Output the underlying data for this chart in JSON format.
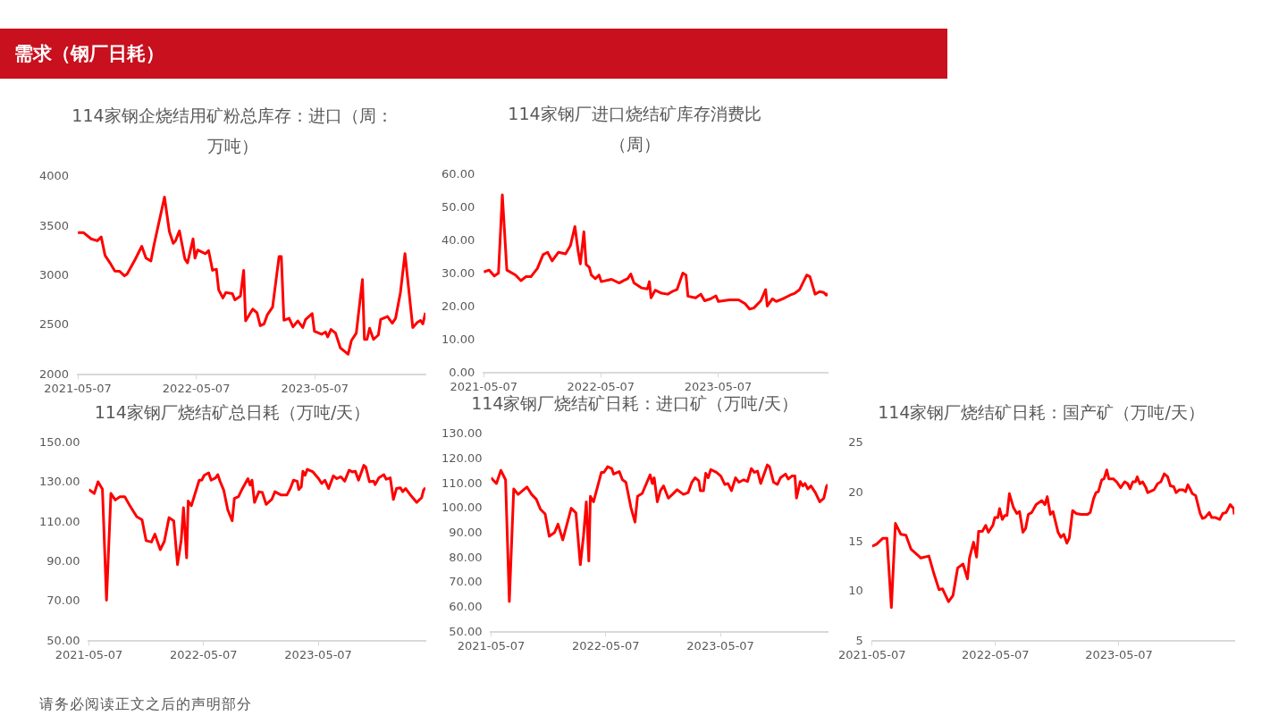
{
  "chart_data": [
    {
      "type": "other",
      "title": "需求（钢厂日耗）",
      "annotations": [
        "请务必阅读正文之后的声明部分"
      ]
    },
    {
      "type": "line",
      "title": "114家钢企烧结用矿粉总库存：进口（周：万吨）",
      "xlim": [
        "2021-05-07",
        "2024-04-12"
      ],
      "xticks": [
        "2021-05-07",
        "2022-05-07",
        "2023-05-07"
      ],
      "ylim": [
        2000,
        4000
      ],
      "yticks": [
        2000,
        2500,
        3000,
        3500,
        4000
      ],
      "grid": false,
      "legend": false,
      "series": [
        {
          "color": "#ff0000",
          "x": [
            "2021-05-07",
            "2021-05-24",
            "2021-06-17",
            "2021-07-06",
            "2021-07-18",
            "2021-07-30",
            "2021-08-14",
            "2021-08-29",
            "2021-09-13",
            "2021-09-28",
            "2021-10-06",
            "2021-10-31",
            "2021-11-20",
            "2021-12-03",
            "2021-12-18",
            "2021-12-28",
            "2022-01-29",
            "2022-02-13",
            "2022-02-25",
            "2022-03-04",
            "2022-03-16",
            "2022-04-02",
            "2022-04-10",
            "2022-04-27",
            "2022-05-03",
            "2022-05-11",
            "2022-06-04",
            "2022-06-14",
            "2022-06-26",
            "2022-07-08",
            "2022-07-15",
            "2022-07-28",
            "2022-08-06",
            "2022-08-26",
            "2022-09-03",
            "2022-09-20",
            "2022-09-30",
            "2022-10-06",
            "2022-10-28",
            "2022-11-10",
            "2022-11-20",
            "2022-12-02",
            "2022-12-12",
            "2022-12-28",
            "2023-01-17",
            "2023-01-24",
            "2023-02-01",
            "2023-02-17",
            "2023-03-01",
            "2023-03-16",
            "2023-03-31",
            "2023-04-09",
            "2023-04-29",
            "2023-05-06",
            "2023-05-28",
            "2023-06-09",
            "2023-06-16",
            "2023-06-26",
            "2023-07-10",
            "2023-07-25",
            "2023-08-08",
            "2023-08-18",
            "2023-08-28",
            "2023-09-12",
            "2023-10-01",
            "2023-10-07",
            "2023-10-15",
            "2023-10-23",
            "2023-11-04",
            "2023-11-19",
            "2023-11-26",
            "2023-12-17",
            "2024-01-01",
            "2024-01-11",
            "2024-01-26",
            "2024-02-09",
            "2024-03-04",
            "2024-03-18",
            "2024-03-28",
            "2024-04-04",
            "2024-04-12"
          ],
          "values": [
            3437,
            3437,
            3373,
            3354,
            3392,
            3205,
            3131,
            3048,
            3045,
            3000,
            3019,
            3168,
            3299,
            3179,
            3149,
            3317,
            3795,
            3448,
            3328,
            3354,
            3455,
            3168,
            3131,
            3373,
            3179,
            3261,
            3224,
            3254,
            3056,
            3067,
            2858,
            2776,
            2832,
            2821,
            2757,
            2795,
            3056,
            2545,
            2664,
            2627,
            2496,
            2515,
            2608,
            2683,
            3194,
            3194,
            2552,
            2571,
            2485,
            2545,
            2478,
            2560,
            2619,
            2440,
            2410,
            2433,
            2384,
            2459,
            2422,
            2272,
            2235,
            2209,
            2347,
            2422,
            2963,
            2358,
            2358,
            2470,
            2358,
            2403,
            2560,
            2590,
            2522,
            2571,
            2832,
            3224,
            2478,
            2530,
            2550,
            2515,
            2627
          ]
        }
      ]
    },
    {
      "type": "line",
      "title": "114家钢厂进口烧结矿库存消费比（周）",
      "xlim": [
        "2021-05-07",
        "2024-04-12"
      ],
      "xticks": [
        "2021-05-07",
        "2022-05-07",
        "2023-05-07"
      ],
      "ylim": [
        0,
        60
      ],
      "yticks": [
        {
          "value": 0,
          "label": "0.00"
        },
        {
          "value": 10,
          "label": "10.00"
        },
        {
          "value": 20,
          "label": "20.00"
        },
        {
          "value": 30,
          "label": "30.00"
        },
        {
          "value": 40,
          "label": "40.00"
        },
        {
          "value": 50,
          "label": "50.00"
        },
        {
          "value": 60,
          "label": "60.00"
        }
      ],
      "grid": false,
      "legend": false,
      "series": [
        {
          "color": "#ff0000",
          "x": [
            "2021-05-07",
            "2021-05-24",
            "2021-06-09",
            "2021-06-22",
            "2021-07-04",
            "2021-07-18",
            "2021-08-14",
            "2021-08-31",
            "2021-09-15",
            "2021-10-01",
            "2021-10-21",
            "2021-11-08",
            "2021-11-22",
            "2021-12-06",
            "2021-12-26",
            "2022-01-17",
            "2022-02-01",
            "2022-02-15",
            "2022-02-25",
            "2022-03-04",
            "2022-03-15",
            "2022-03-22",
            "2022-04-01",
            "2022-04-07",
            "2022-04-20",
            "2022-05-01",
            "2022-05-08",
            "2022-06-09",
            "2022-07-03",
            "2022-07-18",
            "2022-07-29",
            "2022-08-08",
            "2022-08-18",
            "2022-09-10",
            "2022-09-29",
            "2022-10-05",
            "2022-10-10",
            "2022-10-23",
            "2022-11-12",
            "2022-12-01",
            "2022-12-15",
            "2022-12-30",
            "2023-01-17",
            "2023-01-27",
            "2023-02-02",
            "2023-02-26",
            "2023-03-14",
            "2023-03-26",
            "2023-04-14",
            "2023-04-30",
            "2023-05-08",
            "2023-06-11",
            "2023-07-10",
            "2023-07-30",
            "2023-08-13",
            "2023-08-26",
            "2023-09-17",
            "2023-10-02",
            "2023-10-07",
            "2023-10-23",
            "2023-11-04",
            "2023-11-24",
            "2023-12-17",
            "2024-01-01",
            "2024-01-16",
            "2024-02-07",
            "2024-02-17",
            "2024-03-04",
            "2024-03-18",
            "2024-03-31",
            "2024-04-08",
            "2024-04-12"
          ],
          "values": [
            30.6,
            31.2,
            29.4,
            30.3,
            54.0,
            31.2,
            29.7,
            28.0,
            29.2,
            29.2,
            31.7,
            35.9,
            36.6,
            34.0,
            36.6,
            36.1,
            38.6,
            44.4,
            37.0,
            33.1,
            42.8,
            32.9,
            32.0,
            29.7,
            28.6,
            29.7,
            27.7,
            28.4,
            27.3,
            28.1,
            28.6,
            30.0,
            27.3,
            25.8,
            25.5,
            27.7,
            22.8,
            25.1,
            24.2,
            23.9,
            24.7,
            25.3,
            30.3,
            29.7,
            23.3,
            22.8,
            23.9,
            21.9,
            22.5,
            23.4,
            21.7,
            22.2,
            22.2,
            21.0,
            19.4,
            19.7,
            21.9,
            25.3,
            20.3,
            22.5,
            21.7,
            22.5,
            23.6,
            24.2,
            25.3,
            29.7,
            29.2,
            23.9,
            24.7,
            24.4,
            23.6,
            24.2
          ]
        }
      ]
    },
    {
      "type": "line",
      "title": "114家钢厂烧结矿总日耗（万吨/天）",
      "xlim": [
        "2021-05-07",
        "2024-04-12"
      ],
      "xticks": [
        "2021-05-07",
        "2022-05-07",
        "2023-05-07"
      ],
      "ylim": [
        50,
        150
      ],
      "yticks": [
        {
          "value": 50,
          "label": "50.00"
        },
        {
          "value": 70,
          "label": "70.00"
        },
        {
          "value": 90,
          "label": "90.00"
        },
        {
          "value": 110,
          "label": "110.00"
        },
        {
          "value": 130,
          "label": "130.00"
        },
        {
          "value": 150,
          "label": "150.00"
        }
      ],
      "grid": false,
      "legend": false,
      "series": [
        {
          "color": "#ff0000",
          "x": [
            "2021-05-07",
            "2021-05-24",
            "2021-06-05",
            "2021-06-19",
            "2021-07-02",
            "2021-07-16",
            "2021-07-30",
            "2021-08-14",
            "2021-08-29",
            "2021-09-13",
            "2021-10-06",
            "2021-10-23",
            "2021-11-05",
            "2021-11-22",
            "2021-12-03",
            "2021-12-20",
            "2022-01-02",
            "2022-01-17",
            "2022-02-01",
            "2022-02-13",
            "2022-02-25",
            "2022-03-04",
            "2022-03-14",
            "2022-03-19",
            "2022-03-29",
            "2022-04-23",
            "2022-05-01",
            "2022-05-09",
            "2022-05-23",
            "2022-05-31",
            "2022-06-14",
            "2022-06-21",
            "2022-06-29",
            "2022-07-10",
            "2022-07-23",
            "2022-08-06",
            "2022-08-13",
            "2022-08-26",
            "2022-09-05",
            "2022-09-25",
            "2022-10-02",
            "2022-10-08",
            "2022-10-16",
            "2022-10-30",
            "2022-11-10",
            "2022-11-22",
            "2022-12-10",
            "2022-12-20",
            "2023-01-09",
            "2023-01-27",
            "2023-02-07",
            "2023-02-17",
            "2023-03-01",
            "2023-03-06",
            "2023-03-14",
            "2023-03-19",
            "2023-03-26",
            "2023-04-02",
            "2023-04-20",
            "2023-05-08",
            "2023-05-18",
            "2023-05-28",
            "2023-06-09",
            "2023-06-24",
            "2023-07-05",
            "2023-07-18",
            "2023-07-30",
            "2023-08-13",
            "2023-08-23",
            "2023-09-02",
            "2023-09-12",
            "2023-09-29",
            "2023-10-05",
            "2023-10-17",
            "2023-10-30",
            "2023-11-04",
            "2023-11-16",
            "2023-12-02",
            "2023-12-09",
            "2023-12-22",
            "2024-01-01",
            "2024-01-11",
            "2024-01-23",
            "2024-01-31",
            "2024-02-09",
            "2024-02-23",
            "2024-03-15",
            "2024-03-31",
            "2024-04-06",
            "2024-04-12"
          ],
          "values": [
            126.6,
            124.6,
            130.5,
            126.8,
            70.7,
            124.6,
            121.3,
            123.0,
            123.0,
            118.8,
            112.9,
            111.3,
            100.8,
            100.1,
            104.1,
            96.2,
            100.4,
            112.4,
            110.8,
            88.7,
            101.3,
            117.4,
            92.1,
            120.8,
            118.4,
            131.3,
            131.3,
            133.8,
            135.0,
            131.3,
            132.5,
            134.1,
            130.5,
            126.3,
            116.3,
            110.8,
            122.1,
            123.0,
            126.3,
            132.1,
            128.8,
            131.3,
            120.1,
            125.5,
            125.1,
            119.1,
            121.6,
            125.5,
            123.8,
            123.8,
            127.1,
            131.3,
            130.8,
            126.6,
            128.0,
            135.8,
            133.8,
            136.8,
            135.5,
            132.1,
            129.6,
            131.3,
            127.1,
            133.5,
            132.1,
            133.0,
            130.8,
            136.3,
            135.5,
            135.8,
            131.3,
            138.8,
            138.0,
            130.5,
            130.8,
            129.1,
            132.5,
            134.1,
            131.8,
            132.5,
            121.6,
            127.1,
            127.5,
            125.5,
            127.1,
            124.1,
            120.1,
            122.5,
            126.3,
            127.5
          ]
        }
      ]
    },
    {
      "type": "line",
      "title": "114家钢厂烧结矿日耗：进口矿（万吨/天）",
      "xlim": [
        "2021-05-07",
        "2024-04-12"
      ],
      "xticks": [
        "2021-05-07",
        "2022-05-07",
        "2023-05-07"
      ],
      "ylim": [
        50,
        130
      ],
      "yticks": [
        {
          "value": 50,
          "label": "50.00"
        },
        {
          "value": 60,
          "label": "60.00"
        },
        {
          "value": 70,
          "label": "70.00"
        },
        {
          "value": 80,
          "label": "80.00"
        },
        {
          "value": 90,
          "label": "90.00"
        },
        {
          "value": 100,
          "label": "100.00"
        },
        {
          "value": 110,
          "label": "110.00"
        },
        {
          "value": 120,
          "label": "120.00"
        },
        {
          "value": 130,
          "label": "130.00"
        }
      ],
      "grid": false,
      "legend": false,
      "series": [
        {
          "color": "#ff0000",
          "x": [
            "2021-05-07",
            "2021-05-24",
            "2021-06-07",
            "2021-06-22",
            "2021-07-04",
            "2021-07-18",
            "2021-08-01",
            "2021-08-29",
            "2021-09-13",
            "2021-09-28",
            "2021-10-11",
            "2021-10-26",
            "2021-11-08",
            "2021-11-25",
            "2021-12-06",
            "2021-12-21",
            "2022-01-17",
            "2022-02-01",
            "2022-02-15",
            "2022-02-25",
            "2022-03-06",
            "2022-03-14",
            "2022-03-19",
            "2022-03-29",
            "2022-04-23",
            "2022-05-01",
            "2022-05-13",
            "2022-05-26",
            "2022-06-01",
            "2022-06-19",
            "2022-06-29",
            "2022-07-10",
            "2022-07-26",
            "2022-08-08",
            "2022-08-16",
            "2022-08-31",
            "2022-09-25",
            "2022-10-02",
            "2022-10-08",
            "2022-10-18",
            "2022-10-28",
            "2022-11-07",
            "2022-11-22",
            "2022-12-05",
            "2022-12-20",
            "2023-01-09",
            "2023-01-24",
            "2023-02-05",
            "2023-02-15",
            "2023-02-27",
            "2023-03-04",
            "2023-03-14",
            "2023-03-21",
            "2023-03-29",
            "2023-04-06",
            "2023-04-24",
            "2023-05-08",
            "2023-05-21",
            "2023-05-31",
            "2023-06-11",
            "2023-06-24",
            "2023-07-05",
            "2023-07-20",
            "2023-08-01",
            "2023-08-13",
            "2023-08-23",
            "2023-09-02",
            "2023-09-12",
            "2023-10-03",
            "2023-10-10",
            "2023-10-23",
            "2023-11-04",
            "2023-11-14",
            "2023-11-30",
            "2023-12-09",
            "2023-12-20",
            "2023-12-30",
            "2024-01-04",
            "2024-01-16",
            "2024-01-24",
            "2024-01-31",
            "2024-02-09",
            "2024-02-19",
            "2024-03-04",
            "2024-03-18",
            "2024-03-31",
            "2024-04-08",
            "2024-04-12"
          ],
          "values": [
            112.4,
            110.1,
            115.4,
            111.6,
            62.4,
            107.9,
            105.7,
            108.7,
            105.7,
            103.7,
            99.7,
            97.8,
            88.8,
            90.3,
            93.7,
            87.3,
            100.1,
            98.2,
            77.3,
            88.8,
            102.7,
            78.8,
            104.9,
            102.7,
            114.6,
            114.6,
            116.9,
            116.1,
            113.9,
            114.9,
            111.6,
            110.6,
            100.4,
            94.5,
            104.9,
            106.1,
            113.6,
            110.1,
            112.4,
            102.7,
            107.2,
            109.1,
            104.2,
            105.7,
            107.6,
            105.7,
            106.4,
            110.6,
            112.4,
            111.2,
            107.2,
            107.2,
            114.2,
            112.4,
            115.7,
            114.6,
            113.1,
            109.7,
            110.1,
            107.2,
            112.4,
            110.6,
            111.6,
            110.9,
            116.1,
            114.6,
            115.1,
            110.1,
            117.6,
            116.9,
            110.6,
            109.7,
            112.4,
            113.9,
            111.9,
            113.1,
            113.1,
            104.2,
            110.9,
            109.1,
            110.1,
            107.9,
            109.1,
            106.4,
            102.7,
            104.2,
            108.7,
            109.7
          ]
        }
      ]
    },
    {
      "type": "line",
      "title": "114家钢厂烧结矿日耗：国产矿（万吨/天）",
      "xlim": [
        "2021-05-07",
        "2024-04-12"
      ],
      "xticks": [
        "2021-05-07",
        "2022-05-07",
        "2023-05-07"
      ],
      "ylim": [
        5,
        25
      ],
      "yticks": [
        5,
        10,
        15,
        20,
        25
      ],
      "grid": false,
      "legend": false,
      "series": [
        {
          "color": "#ff0000",
          "x": [
            "2021-05-07",
            "2021-05-20",
            "2021-06-08",
            "2021-06-20",
            "2021-07-03",
            "2021-07-15",
            "2021-07-31",
            "2021-08-15",
            "2021-08-30",
            "2021-09-19",
            "2021-09-28",
            "2021-10-22",
            "2021-11-06",
            "2021-11-21",
            "2021-12-01",
            "2021-12-19",
            "2022-01-01",
            "2022-01-15",
            "2022-01-31",
            "2022-02-13",
            "2022-02-19",
            "2022-03-03",
            "2022-03-12",
            "2022-03-18",
            "2022-03-29",
            "2022-04-08",
            "2022-04-16",
            "2022-04-29",
            "2022-05-05",
            "2022-05-14",
            "2022-05-19",
            "2022-05-27",
            "2022-06-03",
            "2022-06-10",
            "2022-06-17",
            "2022-06-29",
            "2022-07-09",
            "2022-07-17",
            "2022-07-27",
            "2022-08-04",
            "2022-08-12",
            "2022-08-22",
            "2022-09-04",
            "2022-09-21",
            "2022-09-30",
            "2022-10-07",
            "2022-10-16",
            "2022-10-24",
            "2022-11-08",
            "2022-11-16",
            "2022-11-25",
            "2022-12-04",
            "2022-12-11",
            "2022-12-21",
            "2022-12-31",
            "2023-01-15",
            "2023-02-03",
            "2023-02-11",
            "2023-02-21",
            "2023-02-28",
            "2023-03-07",
            "2023-03-17",
            "2023-03-24",
            "2023-04-01",
            "2023-04-07",
            "2023-04-20",
            "2023-04-30",
            "2023-05-12",
            "2023-05-24",
            "2023-06-02",
            "2023-06-09",
            "2023-06-17",
            "2023-06-25",
            "2023-06-30",
            "2023-07-08",
            "2023-07-16",
            "2023-07-26",
            "2023-07-31",
            "2023-08-06",
            "2023-08-19",
            "2023-08-29",
            "2023-09-08",
            "2023-09-18",
            "2023-09-28",
            "2023-10-06",
            "2023-10-16",
            "2023-10-23",
            "2023-11-02",
            "2023-11-12",
            "2023-11-20",
            "2023-11-27",
            "2023-12-03",
            "2023-12-10",
            "2023-12-20",
            "2024-01-02",
            "2024-01-09",
            "2024-01-17",
            "2024-01-29",
            "2024-02-05",
            "2024-02-15",
            "2024-02-29",
            "2024-03-09",
            "2024-03-19",
            "2024-03-31",
            "2024-04-10",
            "2024-04-12"
          ],
          "values": [
            14.6,
            14.8,
            15.4,
            15.4,
            8.4,
            16.9,
            15.8,
            15.7,
            14.3,
            13.7,
            13.4,
            13.6,
            11.8,
            10.2,
            10.3,
            9.0,
            9.6,
            12.4,
            12.8,
            11.3,
            13.4,
            15.0,
            13.5,
            16.1,
            16.1,
            16.7,
            16.0,
            16.7,
            17.5,
            17.5,
            18.4,
            17.3,
            17.7,
            17.7,
            19.9,
            18.5,
            17.9,
            18.1,
            16.0,
            16.4,
            17.8,
            18.0,
            18.8,
            19.2,
            18.8,
            19.6,
            17.8,
            18.1,
            16.0,
            15.5,
            15.8,
            14.9,
            15.4,
            18.2,
            17.9,
            17.8,
            17.8,
            18.0,
            19.4,
            20.0,
            20.1,
            21.3,
            21.4,
            22.3,
            21.4,
            21.4,
            21.1,
            20.5,
            21.1,
            20.9,
            20.4,
            21.1,
            21.1,
            21.6,
            20.9,
            21.1,
            20.5,
            20.0,
            20.1,
            20.3,
            20.9,
            21.1,
            21.9,
            21.6,
            20.7,
            20.6,
            20.0,
            20.3,
            20.3,
            20.1,
            20.8,
            20.4,
            19.9,
            19.7,
            17.9,
            17.4,
            17.5,
            18.0,
            17.5,
            17.5,
            17.3,
            17.9,
            18.0,
            18.8,
            18.4,
            17.8
          ]
        }
      ]
    }
  ]
}
